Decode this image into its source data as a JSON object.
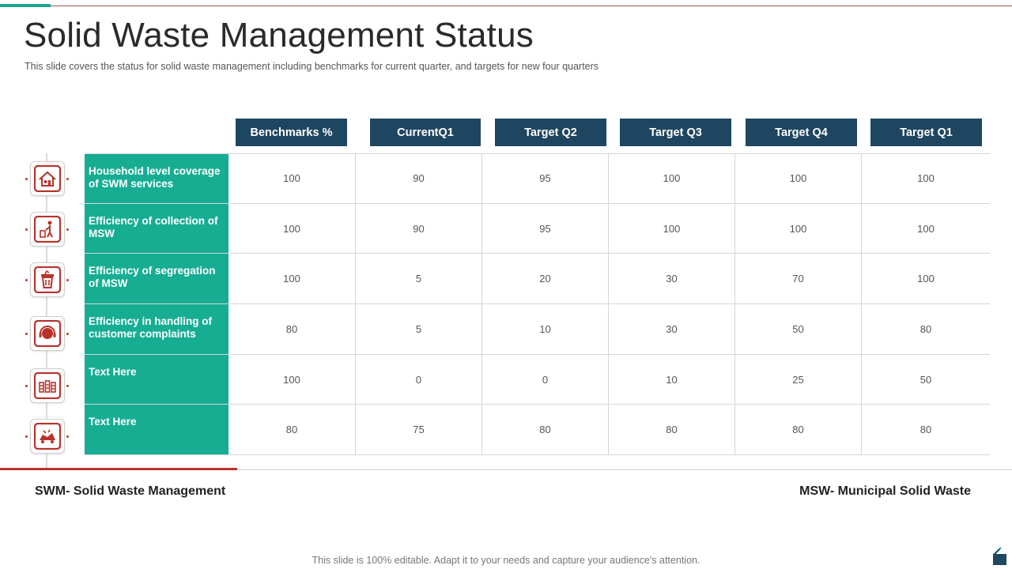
{
  "title": "Solid Waste Management Status",
  "subtitle": "This slide covers the status for solid waste management including benchmarks for current quarter,  and targets for new four quarters",
  "columns": [
    "Benchmarks %",
    "CurrentQ1",
    "Target Q2",
    "Target Q3",
    "Target Q4",
    "Target Q1"
  ],
  "rows": [
    {
      "label": "Household level coverage of SWM services",
      "icon": "house-recycle-icon",
      "values": [
        "100",
        "90",
        "95",
        "100",
        "100",
        "100"
      ]
    },
    {
      "label": "Efficiency of collection of MSW",
      "icon": "person-trash-bin-icon",
      "values": [
        "100",
        "90",
        "95",
        "100",
        "100",
        "100"
      ]
    },
    {
      "label": "Efficiency of segregation of MSW",
      "icon": "waste-bin-icon",
      "values": [
        "100",
        "5",
        "20",
        "30",
        "70",
        "100"
      ]
    },
    {
      "label": "Efficiency in handling of customer complaints",
      "icon": "customer-support-headset-icon",
      "values": [
        "80",
        "5",
        "10",
        "30",
        "50",
        "80"
      ]
    },
    {
      "label": "Text Here",
      "icon": "segregation-bins-icon",
      "values": [
        "100",
        "0",
        "0",
        "10",
        "25",
        "50"
      ]
    },
    {
      "label": "Text Here",
      "icon": "waste-truck-icon",
      "values": [
        "80",
        "75",
        "80",
        "80",
        "80",
        "80"
      ]
    }
  ],
  "legend": {
    "left": "SWM- Solid Waste Management",
    "right": "MSW- Municipal Solid Waste"
  },
  "footer": "This slide is 100% editable. Adapt it to your needs and capture your audience's attention.",
  "colors": {
    "header_bg": "#1f4660",
    "row_label_bg": "#16ad93",
    "accent_red": "#b8322a",
    "accent_teal": "#1fa58e"
  }
}
